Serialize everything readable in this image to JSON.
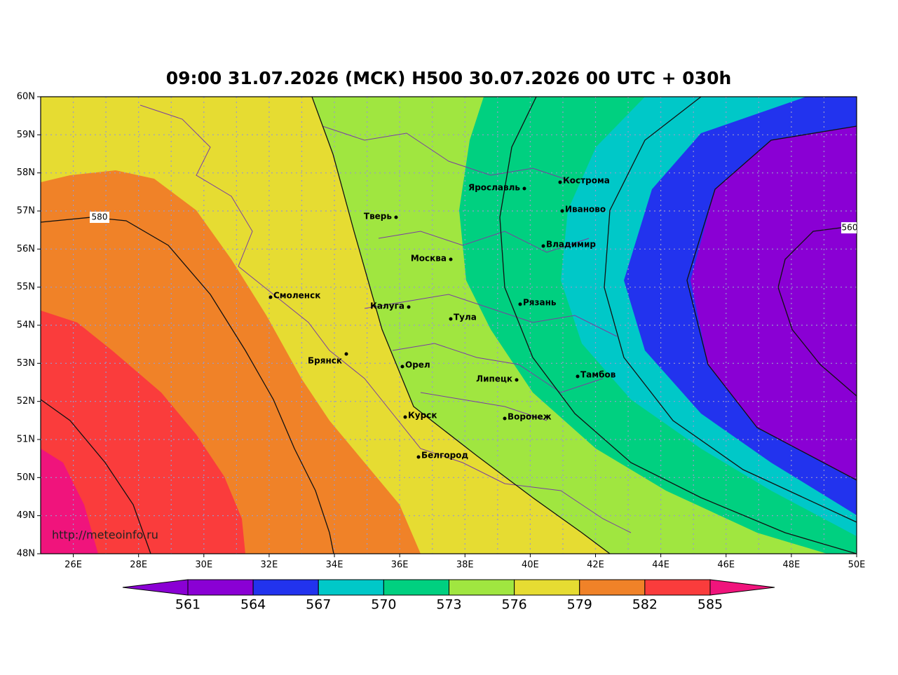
{
  "title": "09:00 31.07.2026 (МСК) H500  30.07.2026 00 UTC + 030h",
  "lat_labels": [
    "60N",
    "59N",
    "58N",
    "57N",
    "56N",
    "55N",
    "54N",
    "53N",
    "52N",
    "51N",
    "50N",
    "49N",
    "48N"
  ],
  "lon_labels": [
    "26E",
    "28E",
    "30E",
    "32E",
    "34E",
    "36E",
    "38E",
    "40E",
    "42E",
    "44E",
    "46E",
    "48E",
    "50E"
  ],
  "cities": [
    "Кострома",
    "Ярославль",
    "Иваново",
    "Тверь",
    "Владимир",
    "Москва",
    "Смоленск",
    "Калуга",
    "Рязань",
    "Тула",
    "Брянск",
    "Орел",
    "Тамбов",
    "Липецк",
    "Курск",
    "Воронеж",
    "Белгород"
  ],
  "contour_labels": [
    "580",
    "560"
  ],
  "source": "http://meteoinfo.ru",
  "colorbar": {
    "levels": [
      561,
      564,
      567,
      570,
      573,
      576,
      579,
      582,
      585
    ],
    "colors": [
      "#8a00d4",
      "#8a00d4",
      "#2233ee",
      "#00c8c8",
      "#00d080",
      "#a0e640",
      "#e6dc32",
      "#f08228",
      "#fa3c3c",
      "#f0147c"
    ]
  }
}
